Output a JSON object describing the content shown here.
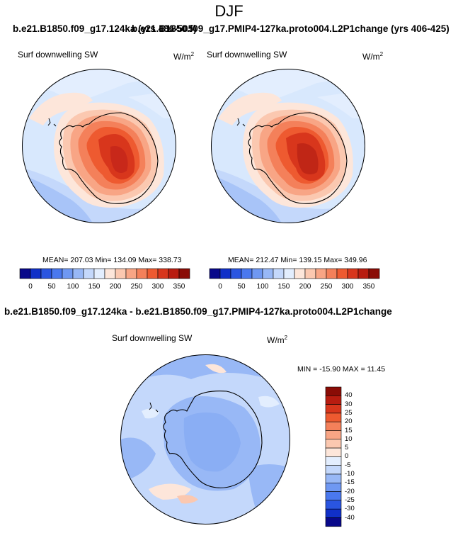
{
  "figure": {
    "title": "DJF",
    "top_left_run": "b.e21.B1850.f09_g17.124ka (yrs 486-505)",
    "top_right_run": "b.e21.B1850.f09_g17.PMIP4-127ka.proto004.L2P1change (yrs 406-425)",
    "bottom_run": "b.e21.B1850.f09_g17.124ka - b.e21.B1850.f09_g17.PMIP4-127ka.proto004.L2P1change"
  },
  "panels": {
    "left": {
      "variable": "Surf downwelling SW",
      "units_base": "W/m",
      "units_exp": "2",
      "stats": "MEAN= 207.03   Min= 134.09   Max= 338.73"
    },
    "right": {
      "variable": "Surf downwelling SW",
      "units_base": "W/m",
      "units_exp": "2",
      "stats": "MEAN= 212.47   Min= 139.15   Max= 349.96"
    },
    "diff": {
      "variable": "Surf downwelling SW",
      "units_base": "W/m",
      "units_exp": "2",
      "stats": "MIN = -15.90 MAX =  11.45"
    }
  },
  "colorbar_horizontal": {
    "labels": [
      "0",
      "50",
      "100",
      "150",
      "200",
      "250",
      "300",
      "350"
    ],
    "colors": [
      "#08088a",
      "#1030c8",
      "#2a55e0",
      "#4a78ee",
      "#6f98f2",
      "#98b8f6",
      "#c4d8fb",
      "#e3eefe",
      "#fde6da",
      "#fbc8b0",
      "#f8a585",
      "#f4805a",
      "#ee5a30",
      "#d8361c",
      "#b81c10",
      "#8a0c06"
    ]
  },
  "colorbar_vertical": {
    "labels": [
      "40",
      "30",
      "25",
      "20",
      "15",
      "10",
      "5",
      "0",
      "-5",
      "-10",
      "-15",
      "-20",
      "-25",
      "-30",
      "-40"
    ],
    "colors": [
      "#8a0c06",
      "#b81c10",
      "#d8361c",
      "#ee5a30",
      "#f4805a",
      "#f8a585",
      "#fbc8b0",
      "#fde6da",
      "#e3eefe",
      "#c4d8fb",
      "#98b8f6",
      "#6f98f2",
      "#4a78ee",
      "#2a55e0",
      "#1030c8",
      "#08088a"
    ]
  }
}
